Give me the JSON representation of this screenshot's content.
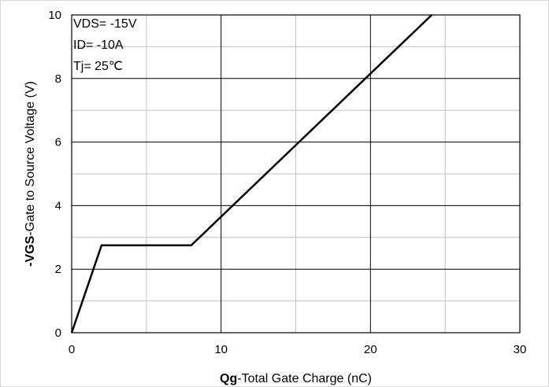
{
  "chart_data": {
    "type": "line",
    "xlabel_bold": "Qg",
    "xlabel_rest": "-Total Gate Charge (nC)",
    "ylabel_bold": "-VGS",
    "ylabel_rest": "-Gate to Source Voltage (V)",
    "xlim": [
      0,
      30
    ],
    "ylim": [
      0,
      10
    ],
    "x_major_ticks": [
      0,
      10,
      20,
      30
    ],
    "x_tick_labels": [
      "0",
      "10",
      "20",
      "30"
    ],
    "y_major_ticks": [
      0,
      2,
      4,
      6,
      8,
      10
    ],
    "y_tick_labels": [
      "0",
      "2",
      "4",
      "6",
      "8",
      "10"
    ],
    "x_minor_grid": [
      5,
      15,
      25
    ],
    "y_minor_grid": [
      1,
      3,
      5,
      7,
      9
    ],
    "grid": true,
    "annotations": [
      "VDS= -15V",
      "ID= -10A",
      "Tj= 25℃"
    ],
    "series": [
      {
        "x": [
          0,
          2.0,
          8.0,
          24.1
        ],
        "y": [
          0,
          2.75,
          2.75,
          10
        ],
        "color": "#000000"
      }
    ],
    "colors": {
      "major_grid": "#000000",
      "minor_grid": "#c0c0c0",
      "line": "#000000"
    }
  }
}
